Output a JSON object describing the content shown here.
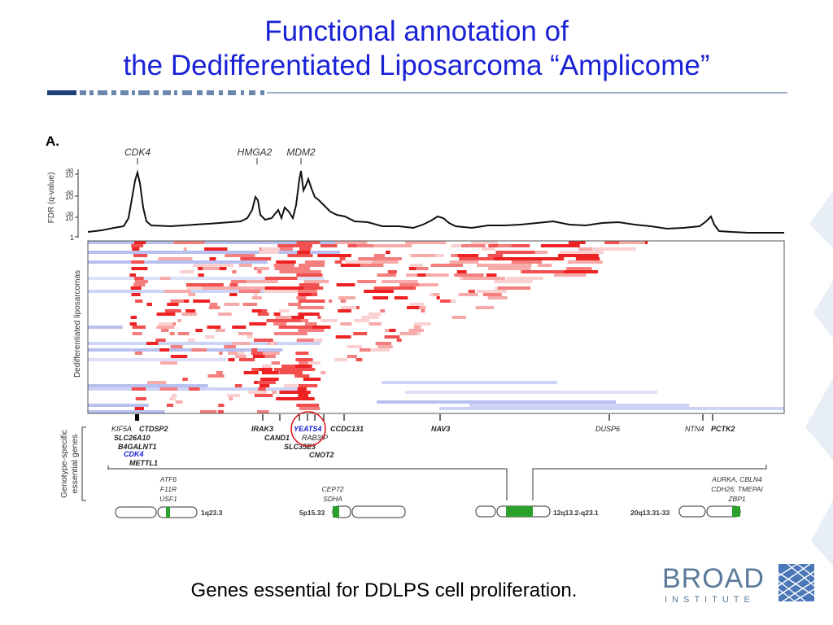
{
  "title": {
    "line1": "Functional annotation of",
    "line2": "the Dedifferentiated Liposarcoma “Amplicome”"
  },
  "colors": {
    "title": "#1a22d6",
    "amplified": "#ee2222",
    "deleted": "#b8c0f0",
    "essential": "#2ca02c",
    "logo": "#5b7a99"
  },
  "panel_label": "A.",
  "top_genes": [
    "CDK4",
    "HMGA2",
    "MDM2"
  ],
  "fdr_axis": {
    "label": "FDR (q-value)",
    "ticks": [
      {
        "base": "10",
        "exp": "-90"
      },
      {
        "base": "10",
        "exp": "-60"
      },
      {
        "base": "10",
        "exp": "-30"
      },
      {
        "base": "1",
        "exp": ""
      }
    ]
  },
  "heatmap_label": "Dedifferentiated liposarcomas",
  "essential_label": {
    "line1": "Genotype-specific",
    "line2": "essential genes"
  },
  "essential_genes": [
    {
      "text": "KIF5A",
      "style": "italic"
    },
    {
      "text": "CTDSP2",
      "style": "italic-bold"
    },
    {
      "text": "SLC26A10",
      "style": "italic-bold"
    },
    {
      "text": "B4GALNT1",
      "style": "italic-bold"
    },
    {
      "text": "CDK4",
      "style": "italic-bold-blue"
    },
    {
      "text": "METTL1",
      "style": "italic-bold"
    },
    {
      "text": "IRAK3",
      "style": "italic-bold"
    },
    {
      "text": "CAND1",
      "style": "italic-bold"
    },
    {
      "text": "SLC35E3",
      "style": "italic-bold"
    },
    {
      "text": "YEATS4",
      "style": "italic-bold-blue"
    },
    {
      "text": "RAB3IP",
      "style": "italic"
    },
    {
      "text": "CNOT2",
      "style": "italic-bold"
    },
    {
      "text": "CCDC131",
      "style": "italic-bold"
    },
    {
      "text": "NAV3",
      "style": "italic-bold"
    },
    {
      "text": "DUSP6",
      "style": "italic"
    },
    {
      "text": "NTN4",
      "style": "italic"
    },
    {
      "text": "PCTK2",
      "style": "italic-bold"
    }
  ],
  "chromosomes": [
    {
      "region": "1q23.3",
      "genes": [
        "ATF6",
        "F11R",
        "USF1"
      ]
    },
    {
      "region": "5p15.33",
      "genes": [
        "CEP72",
        "SDHA"
      ]
    },
    {
      "region": "12q13.2-q23.1",
      "genes": []
    },
    {
      "region": "20q13.31-33",
      "genes": [
        "AURKA, CBLN4",
        "CDH26, TMEPAI",
        "ZBP1"
      ]
    }
  ],
  "caption": "Genes essential for DDLPS cell proliferation.",
  "logo": {
    "line1": "BROAD",
    "line2": "INSTITUTE"
  }
}
